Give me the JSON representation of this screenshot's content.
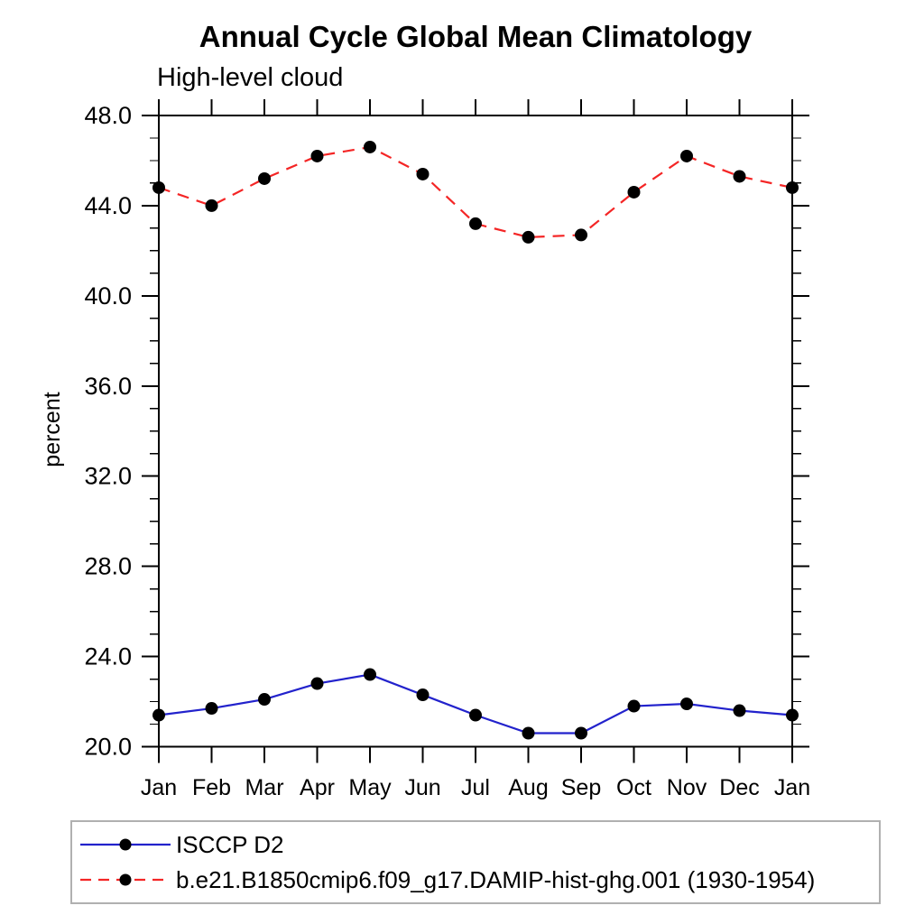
{
  "chart_data": {
    "type": "line",
    "title": "Annual Cycle Global Mean Climatology",
    "subtitle": "High-level cloud",
    "xlabel": "",
    "ylabel": "percent",
    "x_tick_labels": [
      "Jan",
      "Feb",
      "Mar",
      "Apr",
      "May",
      "Jun",
      "Jul",
      "Aug",
      "Sep",
      "Oct",
      "Nov",
      "Dec",
      "Jan"
    ],
    "ylim": [
      20.0,
      48.0
    ],
    "ytick_major_step": 4.0,
    "ytick_minor_step": 1.0,
    "ytick_labels": [
      "20.0",
      "24.0",
      "28.0",
      "32.0",
      "36.0",
      "40.0",
      "44.0",
      "48.0"
    ],
    "grid": false,
    "legend_position": "bottom-left",
    "axis_color": "#000000",
    "legend_border_color": "#b0b0b0",
    "series": [
      {
        "name": "ISCCP D2",
        "color": "#2222cc",
        "line_style": "solid",
        "marker": "filled-circle",
        "marker_color": "#000000",
        "values": [
          21.4,
          21.7,
          22.1,
          22.8,
          23.2,
          22.3,
          21.4,
          20.6,
          20.6,
          21.8,
          21.9,
          21.6,
          21.4
        ]
      },
      {
        "name": "b.e21.B1850cmip6.f09_g17.DAMIP-hist-ghg.001 (1930-1954)",
        "color": "#f42525",
        "line_style": "dashed",
        "marker": "filled-circle",
        "marker_color": "#000000",
        "values": [
          44.8,
          44.0,
          45.2,
          46.2,
          46.6,
          45.4,
          43.2,
          42.6,
          42.7,
          44.6,
          46.2,
          45.3,
          44.8
        ]
      }
    ]
  }
}
